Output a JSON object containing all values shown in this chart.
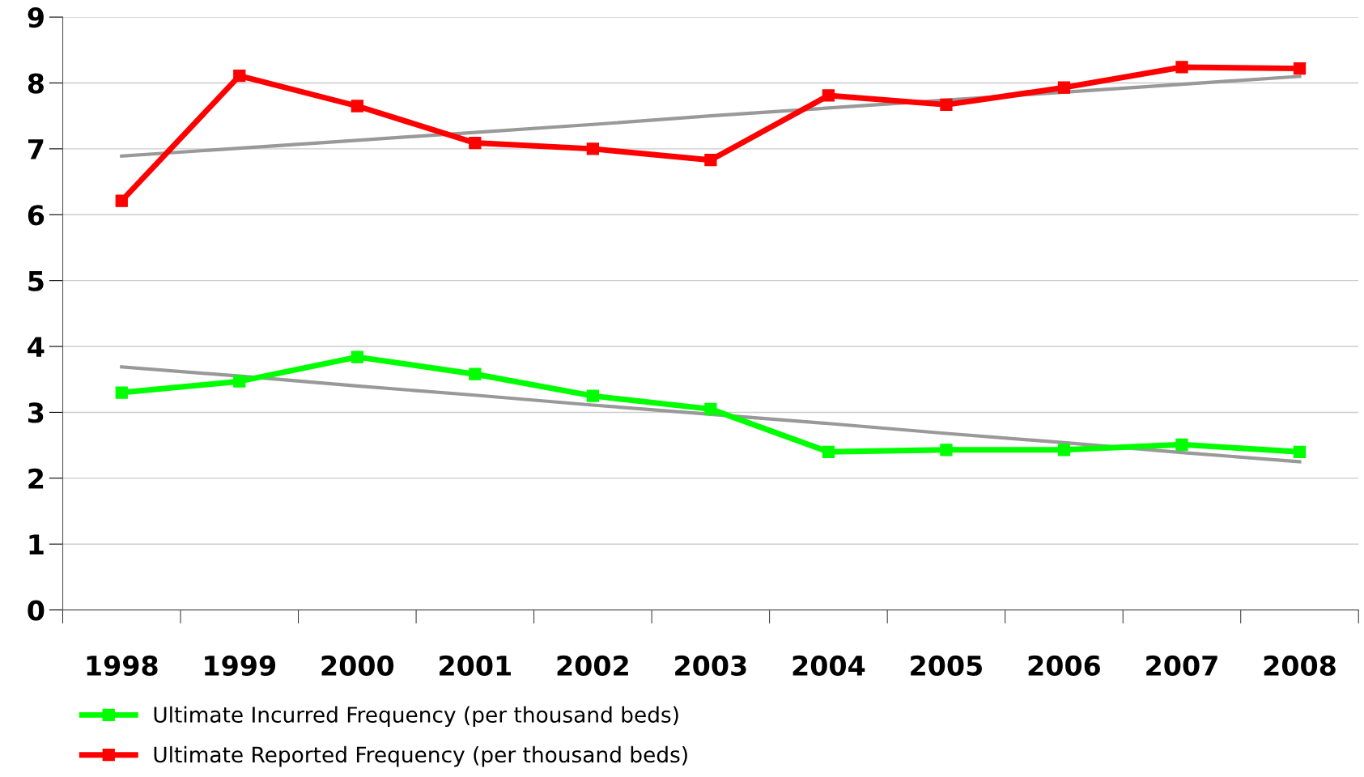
{
  "chart_data": {
    "type": "line",
    "categories": [
      "1998",
      "1999",
      "2000",
      "2001",
      "2002",
      "2003",
      "2004",
      "2005",
      "2006",
      "2007",
      "2008"
    ],
    "series": [
      {
        "name": "Ultimate Incurred Frequency (per thousand beds)",
        "color": "#00ff00",
        "marker": "square",
        "values": [
          3.3,
          3.47,
          3.84,
          3.58,
          3.25,
          3.05,
          2.4,
          2.43,
          2.43,
          2.51,
          2.4
        ]
      },
      {
        "name": "Ultimate Reported Frequency (per thousand beds)",
        "color": "#ff0000",
        "marker": "square",
        "values": [
          6.21,
          8.11,
          7.65,
          7.09,
          7.0,
          6.83,
          7.81,
          7.67,
          7.93,
          8.24,
          8.22
        ]
      },
      {
        "color": "#999999",
        "marker": "none",
        "values": [
          3.69,
          3.55,
          3.4,
          3.26,
          3.11,
          2.97,
          2.83,
          2.68,
          2.54,
          2.39,
          2.25
        ]
      },
      {
        "color": "#999999",
        "marker": "none",
        "values": [
          6.89,
          7.01,
          7.13,
          7.25,
          7.37,
          7.5,
          7.62,
          7.74,
          7.86,
          7.98,
          8.1
        ]
      }
    ],
    "ylim": [
      0,
      9
    ],
    "yticks": [
      0,
      1,
      2,
      3,
      4,
      5,
      6,
      7,
      8,
      9
    ],
    "grid": "y",
    "legend": "bottom left"
  }
}
